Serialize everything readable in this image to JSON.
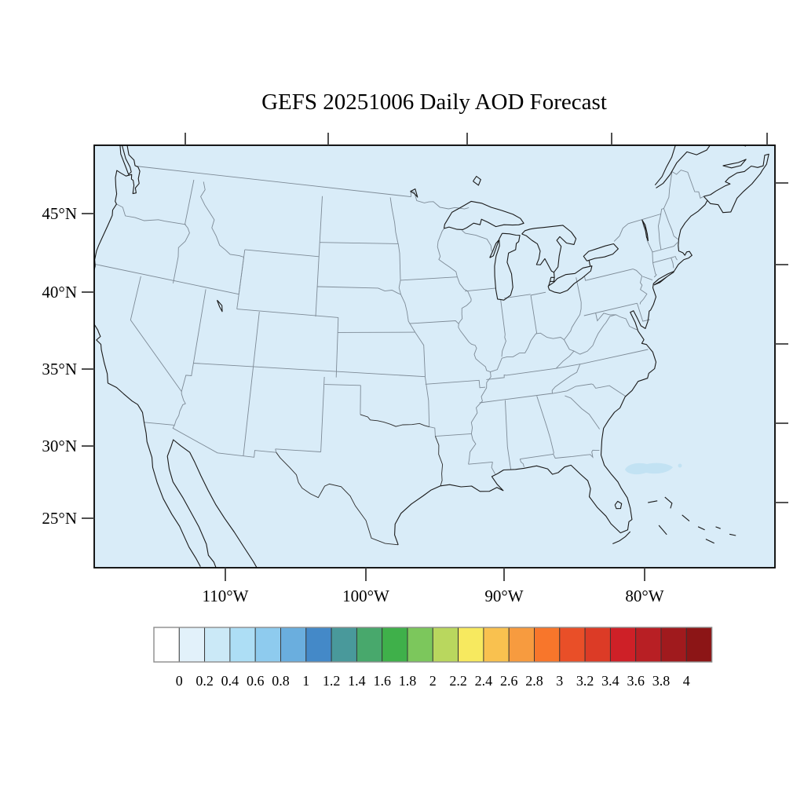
{
  "title": "GEFS 20251006 Daily AOD Forecast",
  "axes": {
    "left_tick_labels": [
      "45°N",
      "40°N",
      "35°N",
      "30°N",
      "25°N"
    ],
    "bottom_tick_labels": [
      "110°W",
      "100°W",
      "90°W",
      "80°W"
    ]
  },
  "colorbar": {
    "tick_labels": [
      "0",
      "0.2",
      "0.4",
      "0.6",
      "0.8",
      "1",
      "1.2",
      "1.4",
      "1.6",
      "1.8",
      "2",
      "2.2",
      "2.4",
      "2.6",
      "2.8",
      "3",
      "3.2",
      "3.4",
      "3.6",
      "3.8",
      "4"
    ],
    "cell_colors": [
      "#ffffff",
      "#e2f1fa",
      "#cbe9f7",
      "#addef5",
      "#8ecbee",
      "#6aaede",
      "#4489c8",
      "#49999b",
      "#48a86c",
      "#3fb04a",
      "#7cc75c",
      "#b9d75e",
      "#f7e95f",
      "#f9c14f",
      "#f79b3f",
      "#f8762b",
      "#e94f28",
      "#dc3b26",
      "#ce2027",
      "#b81f24",
      "#a01a1d",
      "#8c1516"
    ]
  },
  "map": {
    "background_color": "#d9ecf8",
    "aod_patch_color": "#c2e2f3",
    "coastline_color": "#1a1a1a",
    "state_border_color": "#7d8a96",
    "frame_color": "#000000",
    "tick_color": "#3c3c3c"
  }
}
